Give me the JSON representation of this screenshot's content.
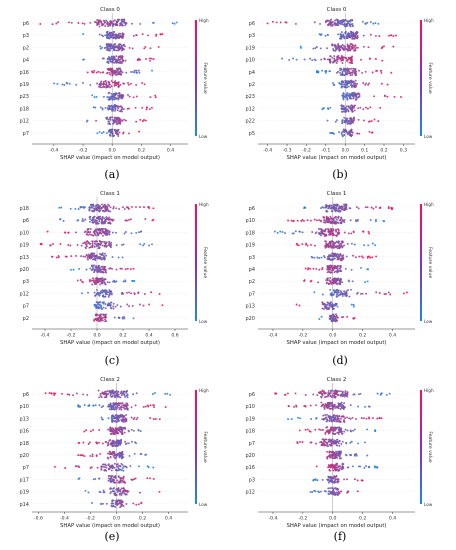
{
  "colors": {
    "low": "#1e88e5",
    "high": "#ff0d57",
    "axis": "#333333",
    "zero_line": "#999999"
  },
  "panels": [
    {
      "caption": "(a)",
      "title": "Class 0",
      "xlabel": "SHAP value (impact on model output)",
      "colorbar_label": "Feature value",
      "colorbar_high": "High",
      "colorbar_low": "Low",
      "features": [
        "p6",
        "p3",
        "p2",
        "p4",
        "p16",
        "p19",
        "p23",
        "p18",
        "p12",
        "p7"
      ],
      "xticks": [
        -0.4,
        -0.2,
        0.0,
        0.2,
        0.4
      ],
      "xtick_labels": [
        "-0.4",
        "-0.2",
        "0.0",
        "0.2",
        "0.4"
      ],
      "xlim": [
        -0.55,
        0.52
      ]
    },
    {
      "caption": "(b)",
      "title": "Class 0",
      "xlabel": "SHAP value (impact on model output)",
      "colorbar_label": "Feature value",
      "colorbar_high": "High",
      "colorbar_low": "Low",
      "features": [
        "p6",
        "p3",
        "p19",
        "p10",
        "p4",
        "p2",
        "p23",
        "p12",
        "p22",
        "p5"
      ],
      "xticks": [
        -0.4,
        -0.3,
        -0.2,
        -0.1,
        0.0,
        0.1,
        0.2,
        0.3
      ],
      "xtick_labels": [
        "-0.4",
        "-0.3",
        "-0.2",
        "-0.1",
        "0.0",
        "0.1",
        "0.2",
        "0.3"
      ],
      "xlim": [
        -0.45,
        0.36
      ]
    },
    {
      "caption": "(c)",
      "title": "Class 1",
      "xlabel": "SHAP value (impact on model output)",
      "colorbar_label": "Feature value",
      "colorbar_high": "High",
      "colorbar_low": "Low",
      "features": [
        "p18",
        "p6",
        "p10",
        "p19",
        "p13",
        "p20",
        "p3",
        "p12",
        "p7",
        "p2"
      ],
      "xticks": [
        -0.4,
        -0.2,
        0.0,
        0.2,
        0.4,
        0.6
      ],
      "xtick_labels": [
        "-0.4",
        "-0.2",
        "0.0",
        "0.2",
        "0.4",
        "0.6"
      ],
      "xlim": [
        -0.5,
        0.7
      ]
    },
    {
      "caption": "(d)",
      "title": "Class 1",
      "xlabel": "SHAP value (impact on model output)",
      "colorbar_label": "Feature value",
      "colorbar_high": "High",
      "colorbar_low": "Low",
      "features": [
        "p6",
        "p10",
        "p18",
        "p19",
        "p3",
        "p4",
        "p2",
        "p7",
        "p13",
        "p20"
      ],
      "xticks": [
        -0.4,
        -0.2,
        0.0,
        0.2,
        0.4
      ],
      "xtick_labels": [
        "-0.4",
        "-0.2",
        "0.0",
        "0.2",
        "0.4"
      ],
      "xlim": [
        -0.5,
        0.55
      ]
    },
    {
      "caption": "(e)",
      "title": "Class 2",
      "xlabel": "SHAP value (impact on model output)",
      "colorbar_label": "Feature value",
      "colorbar_high": "High",
      "colorbar_low": "Low",
      "features": [
        "p6",
        "p10",
        "p13",
        "p16",
        "p18",
        "p20",
        "p7",
        "p17",
        "p19",
        "p14"
      ],
      "xticks": [
        -0.6,
        -0.4,
        -0.2,
        0.0,
        0.2,
        0.4
      ],
      "xtick_labels": [
        "-0.6",
        "-0.4",
        "-0.2",
        "0.0",
        "0.2",
        "0.4"
      ],
      "xlim": [
        -0.65,
        0.55
      ]
    },
    {
      "caption": "(f)",
      "title": "Class 2",
      "xlabel": "SHAP value (impact on model output)",
      "colorbar_label": "Feature value",
      "colorbar_high": "High",
      "colorbar_low": "Low",
      "features": [
        "p6",
        "p10",
        "p19",
        "p18",
        "p7",
        "p20",
        "p16",
        "p3",
        "p12"
      ],
      "xticks": [
        -0.4,
        -0.2,
        0.0,
        0.2,
        0.4
      ],
      "xtick_labels": [
        "-0.4",
        "-0.2",
        "0.0",
        "0.2",
        "0.4"
      ],
      "xlim": [
        -0.5,
        0.55
      ]
    }
  ],
  "chart_data": [
    {
      "type": "scatter",
      "title": "Class 0",
      "xlabel": "SHAP value (impact on model output)",
      "xlim": [
        -0.55,
        0.52
      ],
      "categories": [
        "p6",
        "p3",
        "p2",
        "p4",
        "p16",
        "p19",
        "p23",
        "p18",
        "p12",
        "p7"
      ],
      "spread": [
        [
          -0.5,
          0.45
        ],
        [
          -0.2,
          0.35
        ],
        [
          -0.2,
          0.35
        ],
        [
          -0.2,
          0.32
        ],
        [
          -0.18,
          0.28
        ],
        [
          -0.4,
          0.25
        ],
        [
          -0.15,
          0.32
        ],
        [
          -0.15,
          0.3
        ],
        [
          -0.2,
          0.25
        ],
        [
          -0.12,
          0.2
        ]
      ],
      "high_side": [
        "neg",
        "pos",
        "pos",
        "pos",
        "neg",
        "pos",
        "pos",
        "pos",
        "pos",
        "pos"
      ]
    },
    {
      "type": "scatter",
      "title": "Class 0",
      "xlabel": "SHAP value (impact on model output)",
      "xlim": [
        -0.45,
        0.36
      ],
      "categories": [
        "p6",
        "p3",
        "p19",
        "p10",
        "p4",
        "p2",
        "p23",
        "p12",
        "p22",
        "p5"
      ],
      "spread": [
        [
          -0.42,
          0.22
        ],
        [
          -0.15,
          0.28
        ],
        [
          -0.3,
          0.25
        ],
        [
          -0.35,
          0.2
        ],
        [
          -0.15,
          0.25
        ],
        [
          -0.12,
          0.25
        ],
        [
          -0.1,
          0.3
        ],
        [
          -0.12,
          0.22
        ],
        [
          -0.1,
          0.2
        ],
        [
          -0.08,
          0.15
        ]
      ],
      "high_side": [
        "neg",
        "pos",
        "pos",
        "pos",
        "pos",
        "pos",
        "pos",
        "pos",
        "pos",
        "pos"
      ]
    },
    {
      "type": "scatter",
      "title": "Class 1",
      "xlabel": "SHAP value (impact on model output)",
      "xlim": [
        -0.5,
        0.7
      ],
      "categories": [
        "p18",
        "p6",
        "p10",
        "p19",
        "p13",
        "p20",
        "p3",
        "p12",
        "p7",
        "p2"
      ],
      "spread": [
        [
          -0.3,
          0.45
        ],
        [
          -0.3,
          0.45
        ],
        [
          -0.4,
          0.45
        ],
        [
          -0.45,
          0.5
        ],
        [
          -0.4,
          0.3
        ],
        [
          -0.2,
          0.3
        ],
        [
          -0.2,
          0.3
        ],
        [
          -0.15,
          0.5
        ],
        [
          -0.15,
          0.6
        ],
        [
          -0.15,
          0.3
        ]
      ],
      "high_side": [
        "pos",
        "pos",
        "neg",
        "neg",
        "neg",
        "pos",
        "neg",
        "pos",
        "pos",
        "neg"
      ]
    },
    {
      "type": "scatter",
      "title": "Class 1",
      "xlabel": "SHAP value (impact on model output)",
      "xlim": [
        -0.5,
        0.55
      ],
      "categories": [
        "p6",
        "p10",
        "p18",
        "p19",
        "p3",
        "p4",
        "p2",
        "p7",
        "p13",
        "p20"
      ],
      "spread": [
        [
          -0.25,
          0.4
        ],
        [
          -0.3,
          0.35
        ],
        [
          -0.4,
          0.25
        ],
        [
          -0.25,
          0.3
        ],
        [
          -0.2,
          0.3
        ],
        [
          -0.2,
          0.25
        ],
        [
          -0.2,
          0.25
        ],
        [
          -0.15,
          0.5
        ],
        [
          -0.3,
          0.15
        ],
        [
          -0.1,
          0.15
        ]
      ],
      "high_side": [
        "pos",
        "neg",
        "pos",
        "neg",
        "pos",
        "neg",
        "neg",
        "pos",
        "neg",
        "pos"
      ]
    },
    {
      "type": "scatter",
      "title": "Class 2",
      "xlabel": "SHAP value (impact on model output)",
      "xlim": [
        -0.65,
        0.55
      ],
      "categories": [
        "p6",
        "p10",
        "p13",
        "p16",
        "p18",
        "p20",
        "p7",
        "p17",
        "p19",
        "p14"
      ],
      "spread": [
        [
          -0.6,
          0.45
        ],
        [
          -0.3,
          0.4
        ],
        [
          -0.2,
          0.35
        ],
        [
          -0.25,
          0.3
        ],
        [
          -0.3,
          0.2
        ],
        [
          -0.3,
          0.25
        ],
        [
          -0.5,
          0.3
        ],
        [
          -0.3,
          0.3
        ],
        [
          -0.25,
          0.35
        ],
        [
          -0.2,
          0.25
        ]
      ],
      "high_side": [
        "neg",
        "pos",
        "pos",
        "neg",
        "neg",
        "neg",
        "neg",
        "pos",
        "pos",
        "pos"
      ]
    },
    {
      "type": "scatter",
      "title": "Class 2",
      "xlabel": "SHAP value (impact on model output)",
      "xlim": [
        -0.5,
        0.55
      ],
      "categories": [
        "p6",
        "p10",
        "p19",
        "p18",
        "p7",
        "p20",
        "p16",
        "p3",
        "p12"
      ],
      "spread": [
        [
          -0.4,
          0.45
        ],
        [
          -0.35,
          0.35
        ],
        [
          -0.3,
          0.35
        ],
        [
          -0.25,
          0.3
        ],
        [
          -0.35,
          0.3
        ],
        [
          -0.2,
          0.25
        ],
        [
          -0.15,
          0.3
        ],
        [
          -0.15,
          0.2
        ],
        [
          -0.15,
          0.2
        ]
      ],
      "high_side": [
        "neg",
        "neg",
        "pos",
        "neg",
        "neg",
        "neg",
        "neg",
        "pos",
        "pos"
      ]
    }
  ]
}
